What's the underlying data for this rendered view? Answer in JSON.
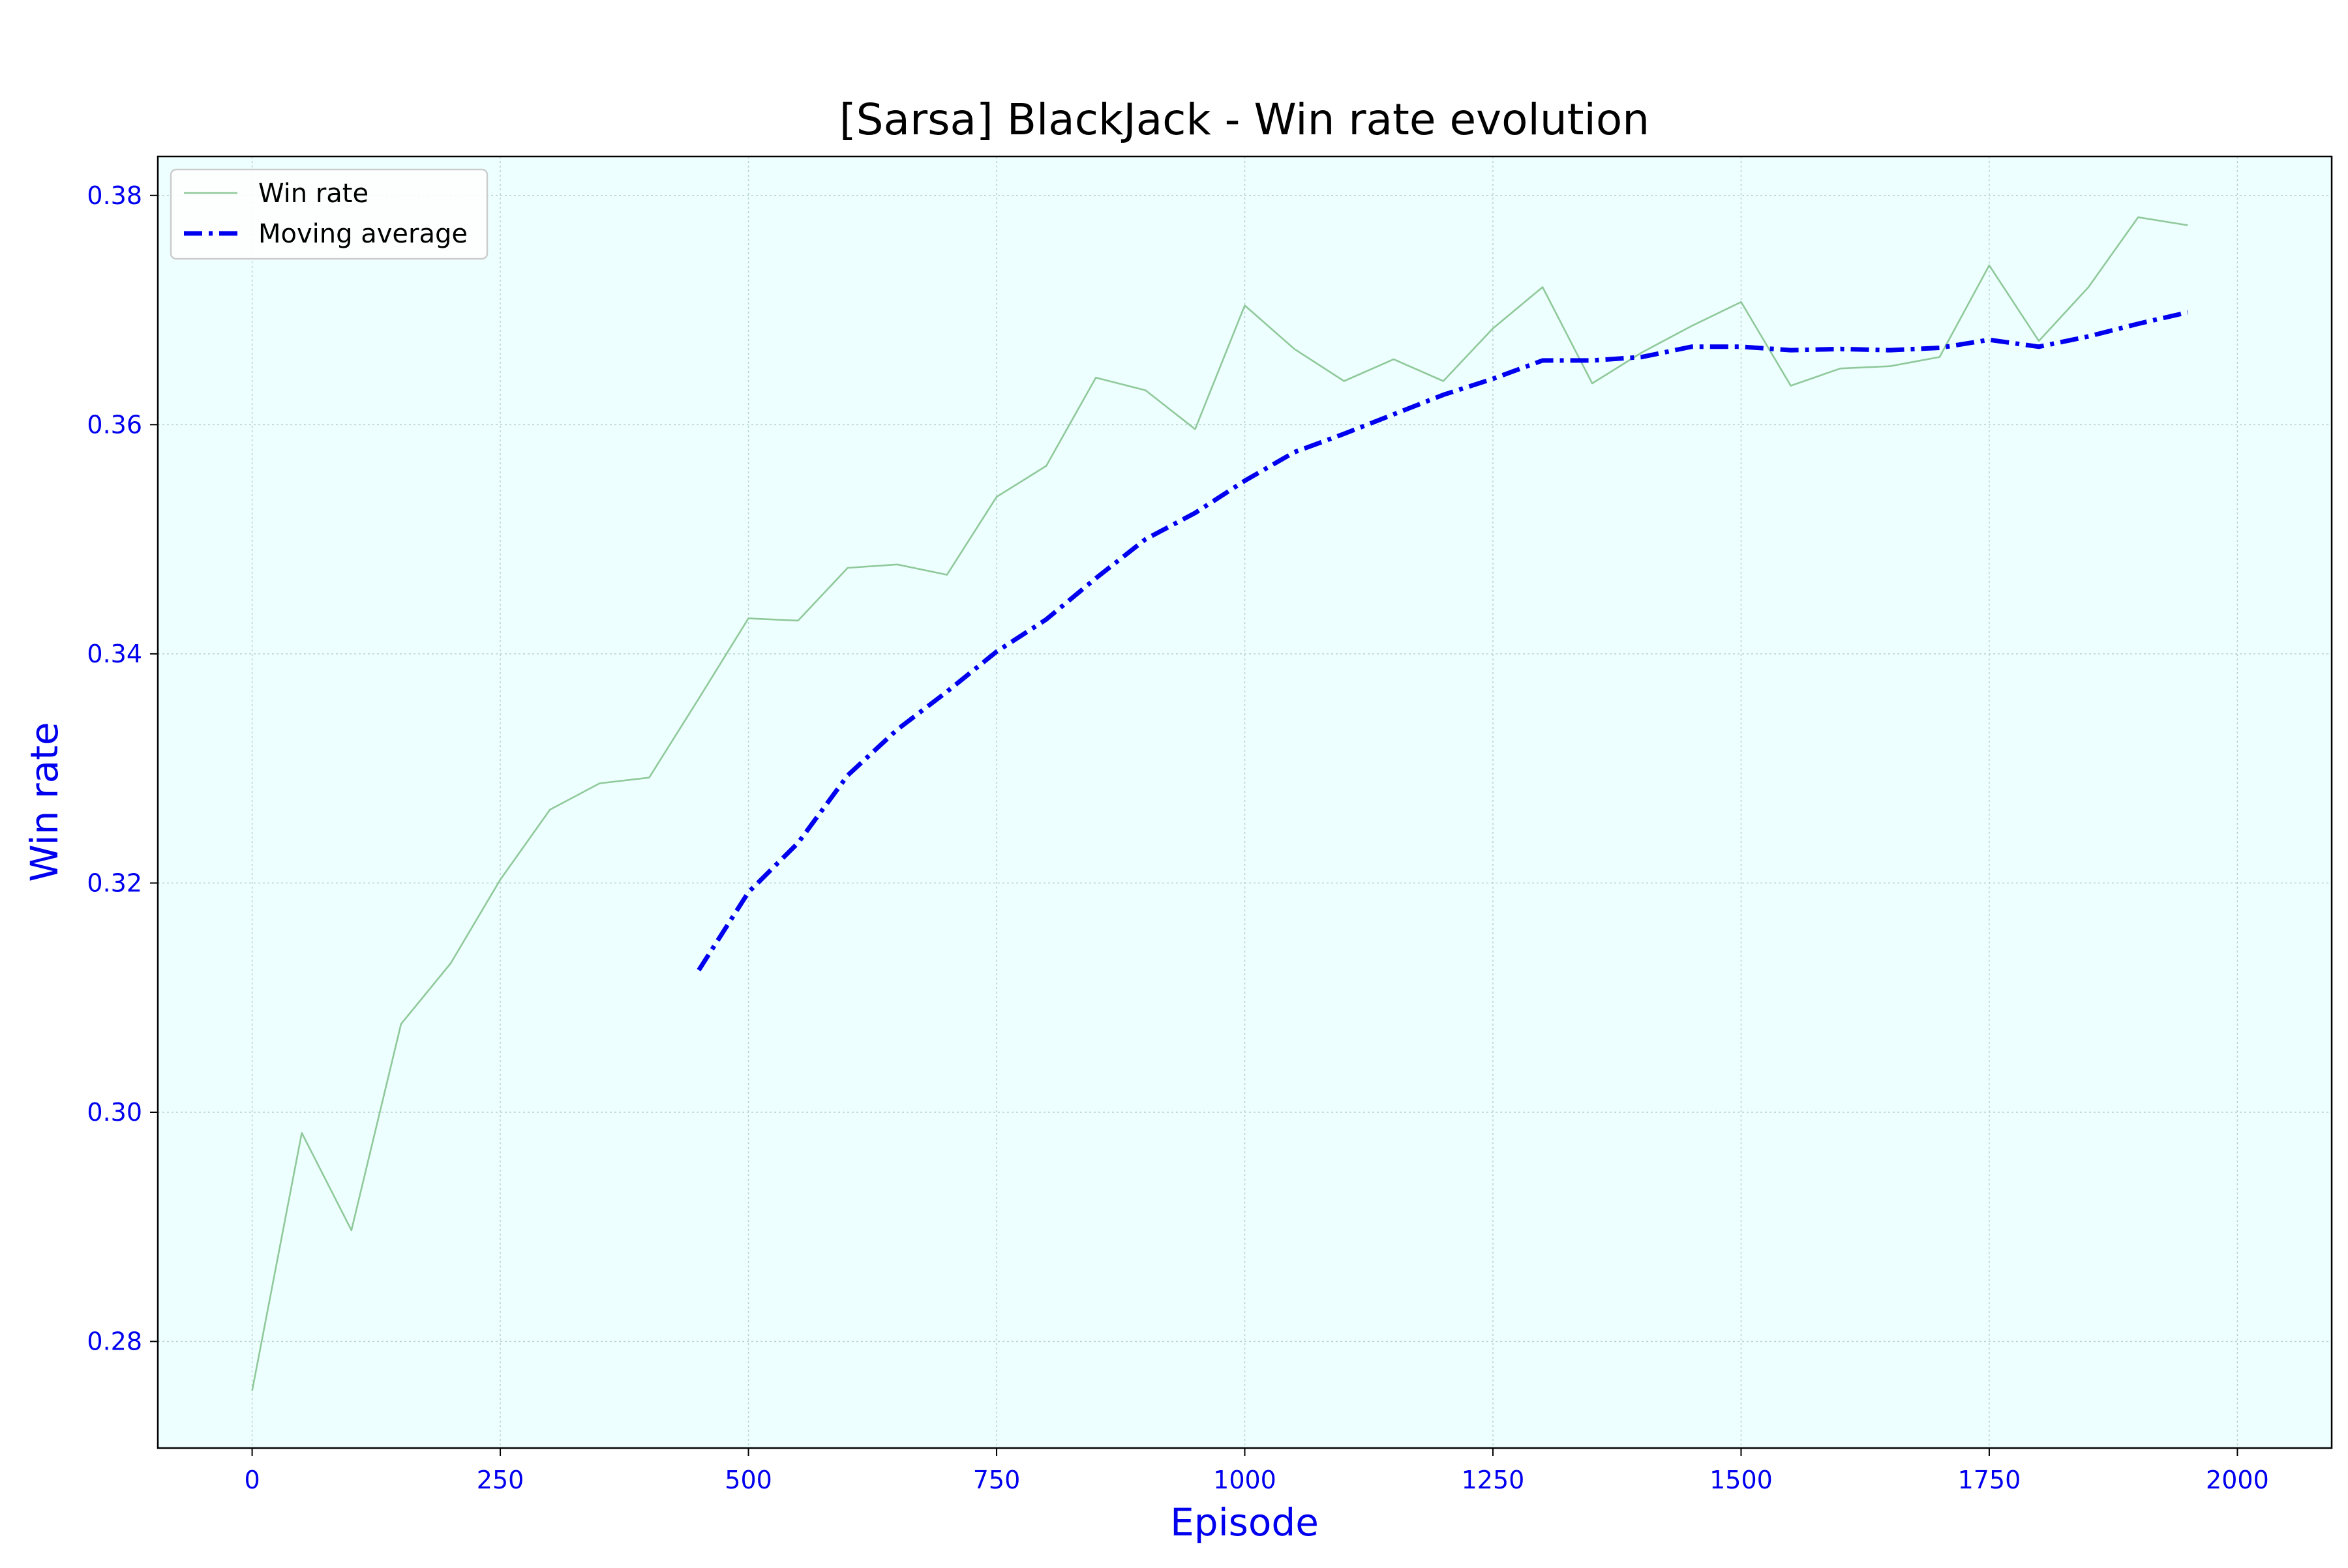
{
  "chart_data": {
    "type": "line",
    "title": "[Sarsa] BlackJack - Win rate evolution",
    "xlabel": "Episode",
    "ylabel": "Win rate",
    "xlim": [
      -95,
      2095
    ],
    "ylim": [
      0.2707,
      0.3834
    ],
    "xticks": [
      0,
      250,
      500,
      750,
      1000,
      1250,
      1500,
      1750,
      2000
    ],
    "xtick_labels": [
      "0",
      "250",
      "500",
      "750",
      "1000",
      "1250",
      "1500",
      "1750",
      "2000"
    ],
    "yticks": [
      0.28,
      0.3,
      0.32,
      0.34,
      0.36,
      0.38
    ],
    "ytick_labels": [
      "0.28",
      "0.30",
      "0.32",
      "0.34",
      "0.36",
      "0.38"
    ],
    "grid": true,
    "legend_position": "upper-left",
    "series": [
      {
        "name": "Win rate",
        "style": "solid-thin",
        "color": "#8fc99a",
        "x": [
          0,
          50,
          100,
          150,
          200,
          250,
          300,
          350,
          400,
          450,
          500,
          550,
          600,
          650,
          700,
          750,
          800,
          850,
          900,
          950,
          1000,
          1050,
          1100,
          1150,
          1200,
          1250,
          1300,
          1350,
          1400,
          1450,
          1500,
          1550,
          1600,
          1650,
          1700,
          1750,
          1800,
          1850,
          1900,
          1950
        ],
        "y": [
          0.2757,
          0.2982,
          0.2897,
          0.3077,
          0.313,
          0.3203,
          0.3264,
          0.3287,
          0.3292,
          0.3361,
          0.3431,
          0.3429,
          0.3475,
          0.3478,
          0.3469,
          0.3537,
          0.3564,
          0.3641,
          0.363,
          0.3596,
          0.3704,
          0.3666,
          0.3638,
          0.3657,
          0.3638,
          0.3684,
          0.372,
          0.3636,
          0.3663,
          0.3686,
          0.3707,
          0.3634,
          0.3649,
          0.3651,
          0.3659,
          0.3739,
          0.3673,
          0.372,
          0.3781,
          0.3774
        ]
      },
      {
        "name": "Moving average",
        "style": "dashdot-thick",
        "color": "#0000ee",
        "x": [
          450,
          500,
          550,
          600,
          650,
          700,
          750,
          800,
          850,
          900,
          950,
          1000,
          1050,
          1100,
          1150,
          1200,
          1250,
          1300,
          1350,
          1400,
          1450,
          1500,
          1550,
          1600,
          1650,
          1700,
          1750,
          1800,
          1850,
          1900,
          1950
        ],
        "y": [
          0.3124,
          0.3192,
          0.3235,
          0.3294,
          0.3334,
          0.3367,
          0.3402,
          0.343,
          0.3466,
          0.35,
          0.3523,
          0.3551,
          0.3576,
          0.3592,
          0.3609,
          0.3626,
          0.364,
          0.3656,
          0.3656,
          0.3659,
          0.3668,
          0.3668,
          0.3665,
          0.3666,
          0.3665,
          0.3667,
          0.3674,
          0.3668,
          0.3677,
          0.3688,
          0.3698
        ]
      }
    ]
  },
  "colors": {
    "plot_background": "#eeffff",
    "axis_text": "#0000ee",
    "grid": "#b7d3cf"
  }
}
